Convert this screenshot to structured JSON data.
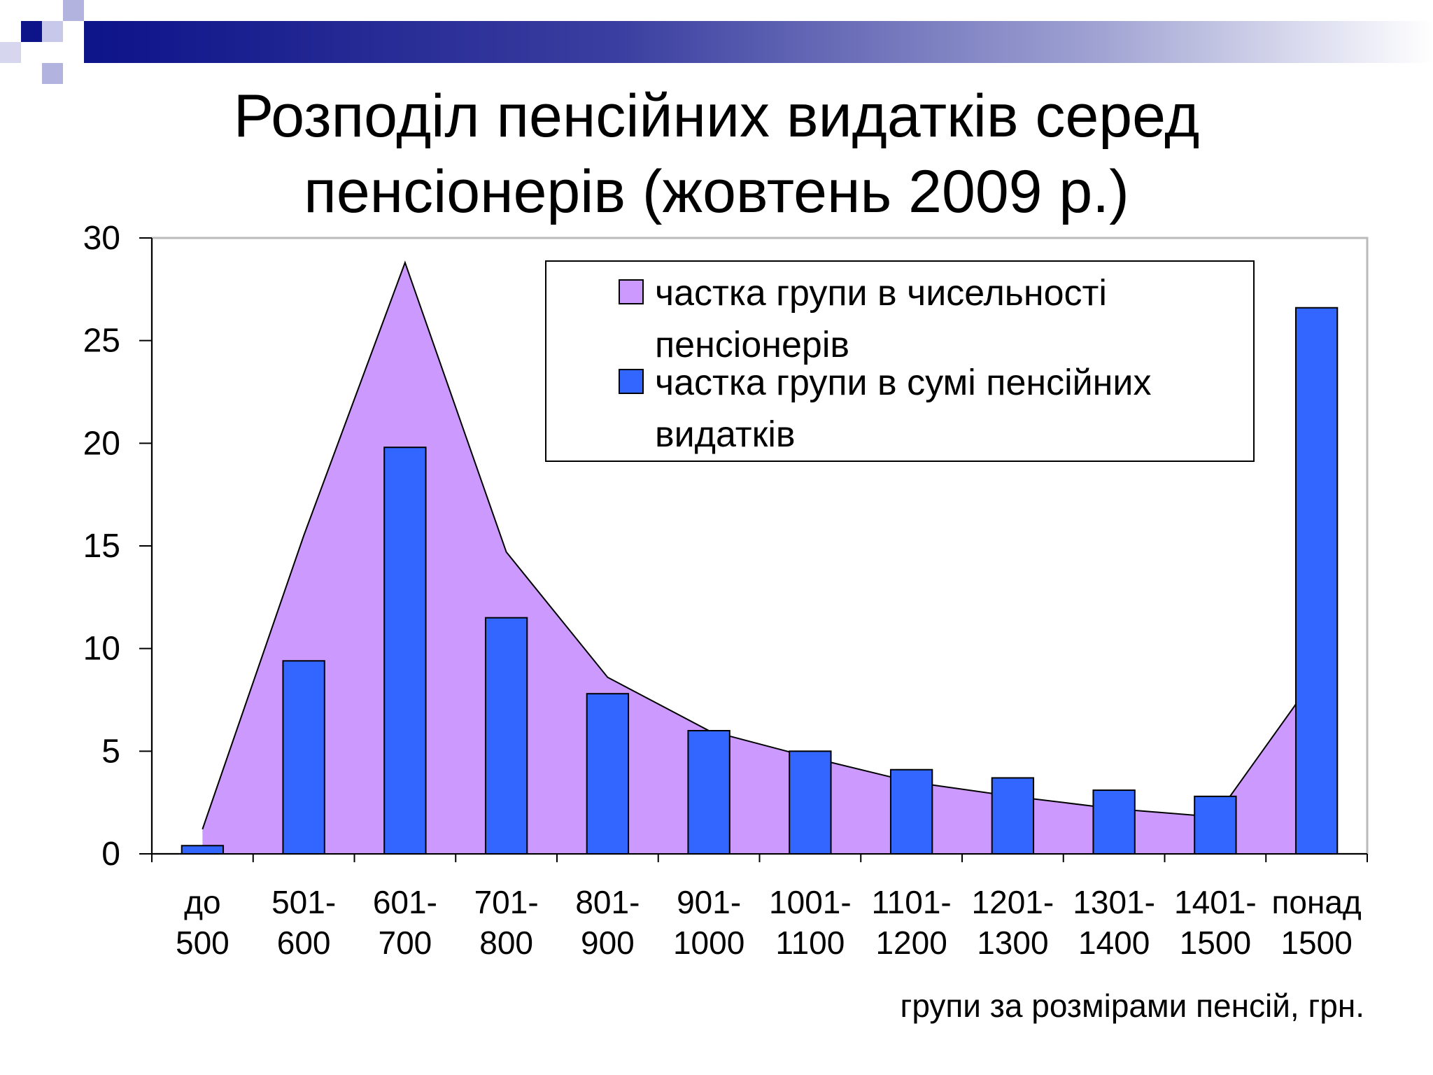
{
  "title_line1": "Розподіл пенсійних видатків серед",
  "title_line2": "пенсіонерів (жовтень 2009 р.)",
  "colors": {
    "area_fill": "#cc99ff",
    "bar_fill": "#3366ff",
    "band_dark": "#0d1389",
    "square_light": "#b3b3e0"
  },
  "chart_data": {
    "type": "bar",
    "title": "",
    "xlabel": "групи за розмірами пенсій, грн.",
    "ylabel": "",
    "ylim": [
      0,
      30
    ],
    "yticks": [
      0,
      5,
      10,
      15,
      20,
      25,
      30
    ],
    "categories": [
      [
        "до",
        "500"
      ],
      [
        "501-",
        "600"
      ],
      [
        "601-",
        "700"
      ],
      [
        "701-",
        "800"
      ],
      [
        "801-",
        "900"
      ],
      [
        "901-",
        "1000"
      ],
      [
        "1001-",
        "1100"
      ],
      [
        "1101-",
        "1200"
      ],
      [
        "1201-",
        "1300"
      ],
      [
        "1301-",
        "1400"
      ],
      [
        "1401-",
        "1500"
      ],
      [
        "понад",
        "1500"
      ]
    ],
    "series": [
      {
        "name": "частка групи в чисельності пенсіонерів",
        "kind": "area",
        "values": [
          1.2,
          15.5,
          28.8,
          14.7,
          8.6,
          6.0,
          4.7,
          3.5,
          2.8,
          2.2,
          1.8,
          8.7
        ]
      },
      {
        "name": "частка групи в сумі пенсійних видатків",
        "kind": "bar",
        "values": [
          0.4,
          9.4,
          19.8,
          11.5,
          7.8,
          6.0,
          5.0,
          4.1,
          3.7,
          3.1,
          2.8,
          26.6
        ]
      }
    ],
    "grid": false,
    "legend_position": "top-right",
    "legend_lines": [
      [
        "частка групи в чисельності",
        "пенсіонерів"
      ],
      [
        "частка групи в сумі пенсійних",
        "видатків"
      ]
    ]
  }
}
